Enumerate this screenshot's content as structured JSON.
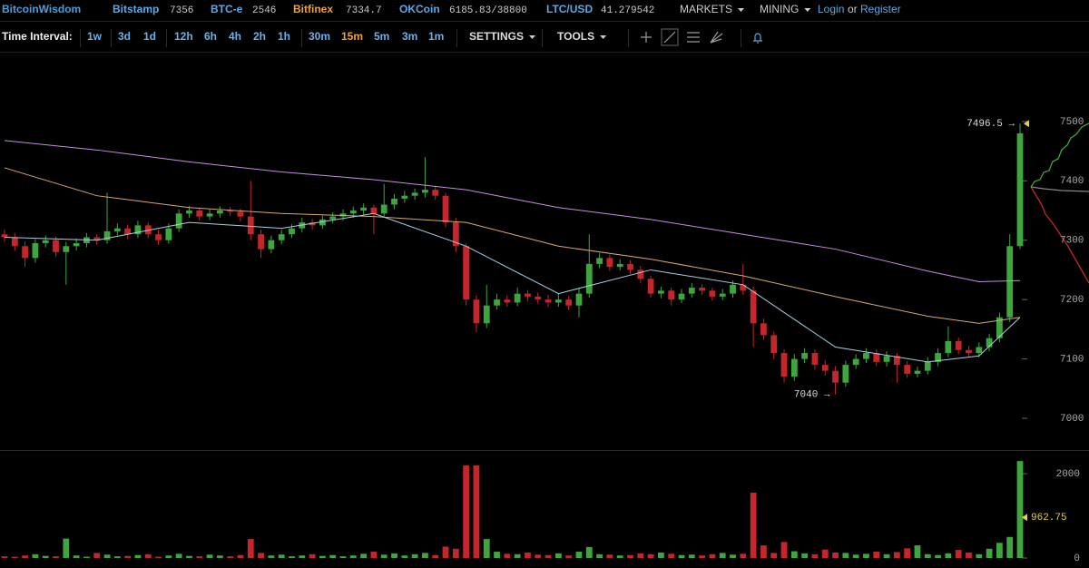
{
  "header": {
    "brand": "BitcoinWisdom",
    "tickers": [
      {
        "name": "Bitstamp",
        "price": "7356"
      },
      {
        "name": "BTC-e",
        "price": "2546"
      },
      {
        "name": "Bitfinex",
        "price": "7334.7"
      },
      {
        "name": "OKCoin",
        "price": "6185.83/38800"
      },
      {
        "name": "LTC/USD",
        "price": "41.279542"
      }
    ],
    "menus": [
      "MARKETS",
      "MINING"
    ],
    "login": "Login",
    "or": "or",
    "register": "Register"
  },
  "toolbar": {
    "label": "Time Interval:",
    "intervals": [
      "1w",
      "3d",
      "1d",
      "12h",
      "6h",
      "4h",
      "2h",
      "1h",
      "30m",
      "15m",
      "5m",
      "3m",
      "1m"
    ],
    "active_interval": 9,
    "menus": [
      "SETTINGS",
      "TOOLS"
    ]
  },
  "chart_data": {
    "type": "candlestick",
    "up_color": "#3fa63f",
    "down_color": "#c5262c",
    "open": [
      7310,
      7305,
      7290,
      7270,
      7295,
      7300,
      7280,
      7290,
      7295,
      7305,
      7300,
      7315,
      7320,
      7310,
      7325,
      7310,
      7300,
      7320,
      7345,
      7350,
      7340,
      7345,
      7350,
      7348,
      7340,
      7310,
      7285,
      7300,
      7310,
      7320,
      7330,
      7325,
      7335,
      7340,
      7345,
      7350,
      7355,
      7345,
      7360,
      7370,
      7375,
      7380,
      7385,
      7375,
      7330,
      7290,
      7200,
      7160,
      7190,
      7200,
      7195,
      7210,
      7205,
      7200,
      7195,
      7200,
      7190,
      7210,
      7260,
      7270,
      7255,
      7260,
      7250,
      7235,
      7210,
      7215,
      7200,
      7210,
      7220,
      7215,
      7205,
      7210,
      7225,
      7215,
      7160,
      7140,
      7110,
      7070,
      7100,
      7110,
      7090,
      7080,
      7060,
      7090,
      7100,
      7110,
      7095,
      7105,
      7090,
      7075,
      7080,
      7095,
      7110,
      7130,
      7115,
      7110,
      7120,
      7135,
      7170,
      7290
    ],
    "high": [
      7318,
      7312,
      7298,
      7302,
      7308,
      7306,
      7297,
      7303,
      7312,
      7310,
      7380,
      7328,
      7326,
      7333,
      7330,
      7318,
      7328,
      7352,
      7358,
      7355,
      7352,
      7357,
      7356,
      7353,
      7400,
      7318,
      7308,
      7318,
      7327,
      7338,
      7336,
      7342,
      7347,
      7352,
      7357,
      7362,
      7360,
      7395,
      7378,
      7383,
      7387,
      7440,
      7392,
      7380,
      7338,
      7295,
      7208,
      7225,
      7210,
      7207,
      7220,
      7216,
      7212,
      7208,
      7210,
      7206,
      7218,
      7310,
      7278,
      7276,
      7268,
      7266,
      7257,
      7240,
      7222,
      7220,
      7218,
      7228,
      7226,
      7220,
      7218,
      7232,
      7260,
      7222,
      7168,
      7146,
      7116,
      7108,
      7118,
      7116,
      7098,
      7088,
      7097,
      7108,
      7118,
      7116,
      7113,
      7110,
      7096,
      7087,
      7103,
      7118,
      7155,
      7136,
      7122,
      7128,
      7142,
      7178,
      7310,
      7496.5
    ],
    "low": [
      7297,
      7282,
      7255,
      7262,
      7288,
      7272,
      7225,
      7283,
      7288,
      7292,
      7294,
      7308,
      7302,
      7304,
      7303,
      7292,
      7294,
      7314,
      7338,
      7333,
      7334,
      7338,
      7341,
      7332,
      7300,
      7270,
      7278,
      7293,
      7304,
      7313,
      7318,
      7319,
      7328,
      7333,
      7338,
      7343,
      7310,
      7338,
      7352,
      7363,
      7368,
      7372,
      7368,
      7322,
      7280,
      7190,
      7145,
      7152,
      7183,
      7188,
      7189,
      7197,
      7193,
      7187,
      7188,
      7182,
      7170,
      7203,
      7253,
      7248,
      7249,
      7243,
      7228,
      7203,
      7202,
      7190,
      7194,
      7203,
      7208,
      7198,
      7199,
      7203,
      7208,
      7120,
      7132,
      7100,
      7060,
      7063,
      7093,
      7082,
      7072,
      7040,
      7053,
      7083,
      7093,
      7088,
      7087,
      7060,
      7068,
      7069,
      7074,
      7088,
      7103,
      7108,
      7104,
      7103,
      7113,
      7128,
      7162,
      7285
    ],
    "close": [
      7305,
      7290,
      7270,
      7295,
      7300,
      7280,
      7290,
      7295,
      7305,
      7300,
      7315,
      7320,
      7310,
      7325,
      7310,
      7300,
      7320,
      7345,
      7350,
      7340,
      7345,
      7350,
      7348,
      7340,
      7310,
      7285,
      7300,
      7310,
      7320,
      7330,
      7325,
      7335,
      7340,
      7345,
      7350,
      7355,
      7345,
      7360,
      7370,
      7375,
      7380,
      7385,
      7375,
      7330,
      7290,
      7200,
      7160,
      7190,
      7200,
      7195,
      7210,
      7205,
      7200,
      7195,
      7200,
      7190,
      7210,
      7260,
      7270,
      7255,
      7260,
      7250,
      7235,
      7210,
      7215,
      7200,
      7210,
      7220,
      7215,
      7205,
      7210,
      7225,
      7215,
      7160,
      7140,
      7110,
      7070,
      7100,
      7110,
      7090,
      7080,
      7060,
      7090,
      7100,
      7110,
      7095,
      7105,
      7090,
      7075,
      7080,
      7095,
      7110,
      7130,
      7115,
      7110,
      7120,
      7135,
      7170,
      7290,
      7480
    ],
    "lines": [
      {
        "color": "#c58ee0",
        "x": [
          0,
          9,
          18,
          27,
          36,
          45,
          54,
          63,
          72,
          81,
          90,
          95,
          99
        ],
        "values": [
          7468,
          7452,
          7432,
          7415,
          7402,
          7385,
          7355,
          7335,
          7310,
          7285,
          7248,
          7230,
          7232
        ]
      },
      {
        "color": "#d9a86c",
        "x": [
          0,
          9,
          18,
          27,
          36,
          45,
          54,
          63,
          72,
          81,
          90,
          95,
          99
        ],
        "values": [
          7422,
          7375,
          7355,
          7345,
          7340,
          7330,
          7290,
          7268,
          7240,
          7205,
          7172,
          7160,
          7170
        ]
      },
      {
        "color": "#a9cfe2",
        "x": [
          0,
          9,
          18,
          27,
          36,
          45,
          54,
          63,
          72,
          81,
          90,
          95,
          99
        ],
        "values": [
          7305,
          7300,
          7330,
          7320,
          7345,
          7290,
          7210,
          7250,
          7225,
          7120,
          7095,
          7105,
          7170
        ]
      }
    ],
    "ylim": [
      6948,
      7613
    ],
    "yticks": [
      7000,
      7100,
      7200,
      7300,
      7400,
      7500
    ],
    "annotations": [
      {
        "x": 99,
        "value": 7496.5,
        "label": "7496.5 →"
      },
      {
        "x": 81,
        "value": 7040,
        "label": "7040 →"
      }
    ],
    "volume": {
      "values": [
        40,
        30,
        60,
        90,
        50,
        40,
        460,
        60,
        30,
        120,
        80,
        40,
        50,
        70,
        90,
        30,
        60,
        100,
        50,
        40,
        80,
        60,
        40,
        70,
        450,
        120,
        60,
        80,
        40,
        60,
        90,
        50,
        70,
        40,
        60,
        100,
        150,
        80,
        110,
        60,
        90,
        120,
        70,
        270,
        220,
        2200,
        2200,
        450,
        150,
        100,
        90,
        130,
        80,
        70,
        110,
        60,
        150,
        260,
        90,
        80,
        60,
        70,
        110,
        90,
        130,
        100,
        70,
        80,
        60,
        90,
        120,
        80,
        100,
        1550,
        300,
        120,
        380,
        160,
        110,
        90,
        200,
        130,
        120,
        80,
        100,
        150,
        90,
        140,
        230,
        300,
        90,
        70,
        110,
        190,
        130,
        90,
        220,
        360,
        500,
        2300
      ],
      "ylim": [
        0,
        2540
      ],
      "yticks": [
        0,
        2000
      ],
      "marker": 962.75
    }
  }
}
